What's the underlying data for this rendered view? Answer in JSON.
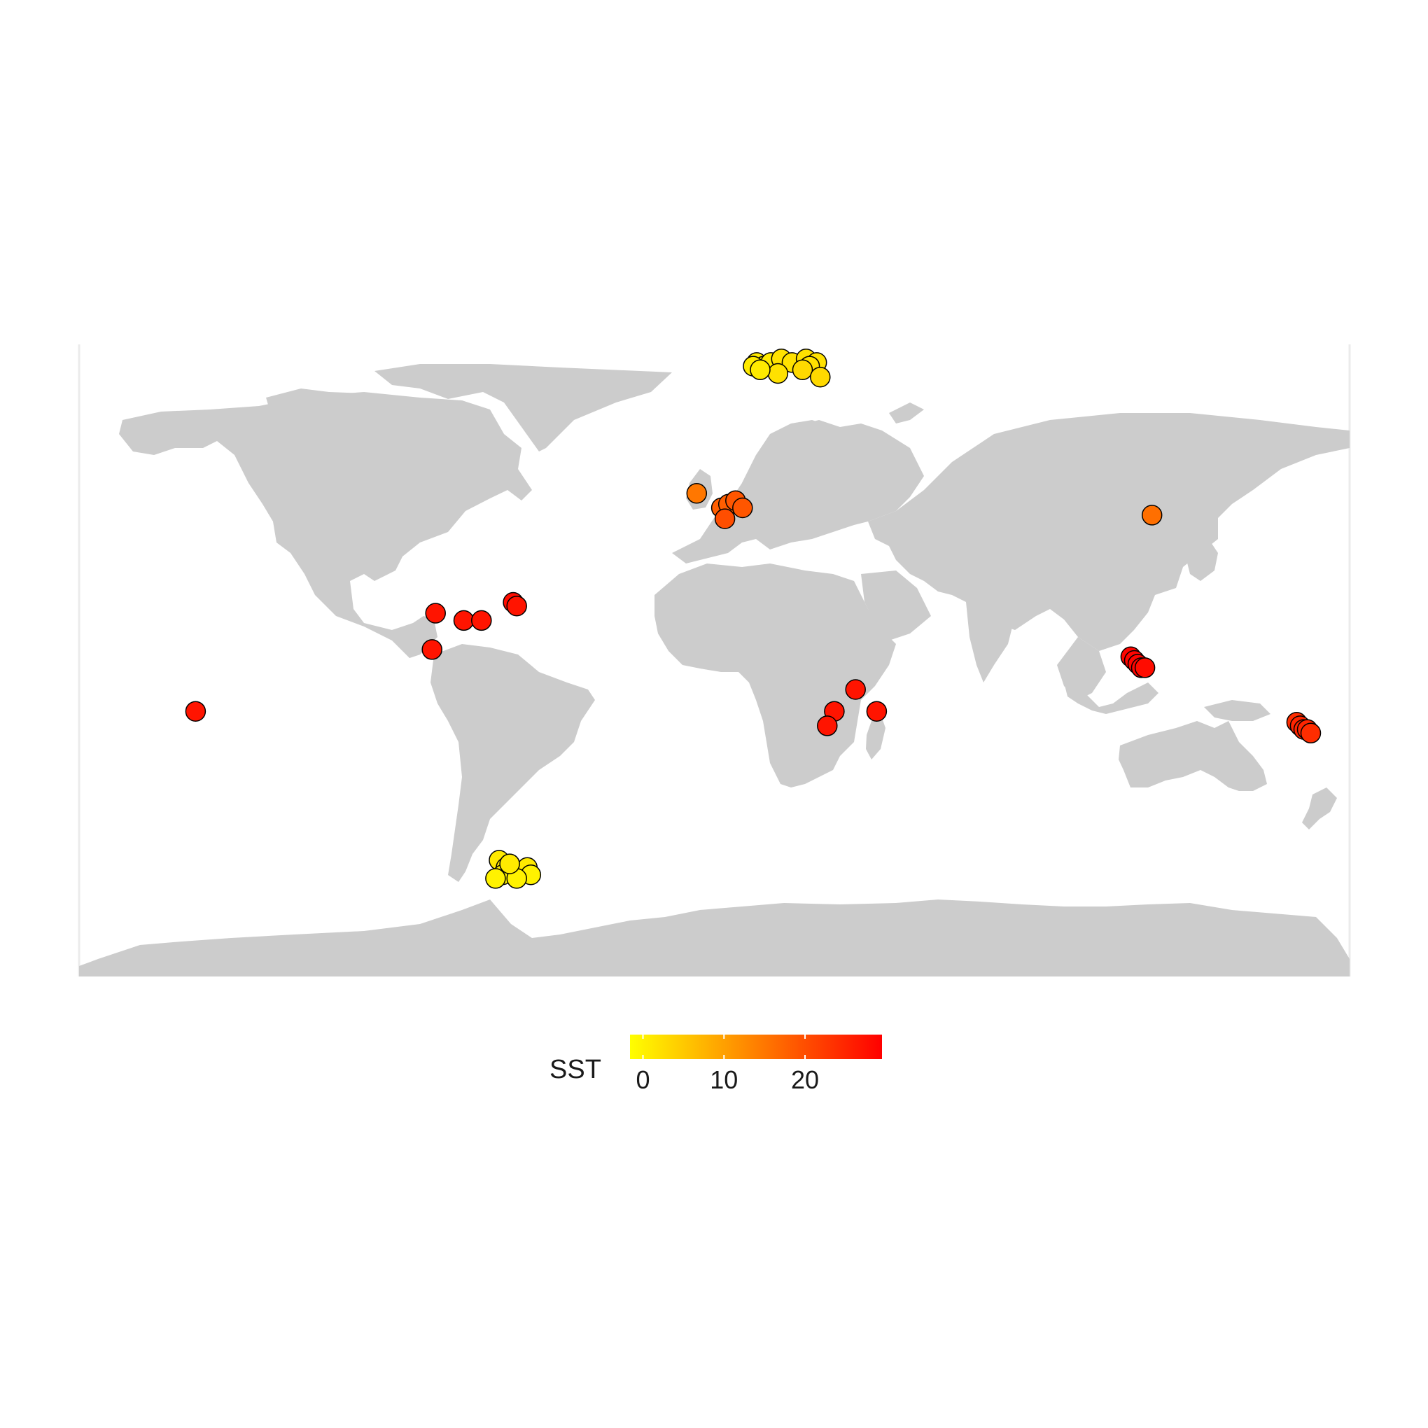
{
  "map": {
    "projection": "equirectangular",
    "lon_range": [
      -180,
      180
    ],
    "lat_range": [
      -90,
      90
    ],
    "land_color": "#cccccc",
    "ocean_color": "#ffffff",
    "point_stroke": "#000000"
  },
  "legend": {
    "title": "SST",
    "ticks": [
      {
        "value": 0,
        "label": "0"
      },
      {
        "value": 10,
        "label": "10"
      },
      {
        "value": 20,
        "label": "20"
      }
    ],
    "range": [
      -1.6,
      29.5
    ],
    "color_low": "#ffff00",
    "color_high": "#ff0000"
  },
  "chart_data": {
    "type": "scatter",
    "x_variable": "longitude",
    "y_variable": "latitude",
    "color_variable": "SST",
    "points": [
      {
        "lon": 12,
        "lat": 79,
        "sst": 1
      },
      {
        "lon": 14,
        "lat": 78,
        "sst": 0
      },
      {
        "lon": 16,
        "lat": 79,
        "sst": 1
      },
      {
        "lon": 11,
        "lat": 78,
        "sst": 1
      },
      {
        "lon": 19,
        "lat": 80,
        "sst": 2
      },
      {
        "lon": 22,
        "lat": 79,
        "sst": 2
      },
      {
        "lon": 26,
        "lat": 80,
        "sst": 2
      },
      {
        "lon": 29,
        "lat": 79,
        "sst": 2
      },
      {
        "lon": 27,
        "lat": 78,
        "sst": 2
      },
      {
        "lon": 18,
        "lat": 76,
        "sst": 2
      },
      {
        "lon": 25,
        "lat": 77,
        "sst": 3
      },
      {
        "lon": 30,
        "lat": 75,
        "sst": 3
      },
      {
        "lon": 13,
        "lat": 77,
        "sst": 1
      },
      {
        "lon": -5,
        "lat": 43,
        "sst": 15
      },
      {
        "lon": 2,
        "lat": 39,
        "sst": 18
      },
      {
        "lon": 4,
        "lat": 40,
        "sst": 18
      },
      {
        "lon": 6,
        "lat": 41,
        "sst": 19
      },
      {
        "lon": 8,
        "lat": 39,
        "sst": 19
      },
      {
        "lon": 3,
        "lat": 36,
        "sst": 20
      },
      {
        "lon": 124,
        "lat": 37,
        "sst": 16
      },
      {
        "lon": -79,
        "lat": 10,
        "sst": 27
      },
      {
        "lon": -71,
        "lat": 8,
        "sst": 27
      },
      {
        "lon": -66,
        "lat": 8,
        "sst": 27
      },
      {
        "lon": -57,
        "lat": 13,
        "sst": 28
      },
      {
        "lon": -56,
        "lat": 12,
        "sst": 27
      },
      {
        "lon": -80,
        "lat": 0,
        "sst": 27
      },
      {
        "lon": -147,
        "lat": -17,
        "sst": 27
      },
      {
        "lon": 40,
        "lat": -11,
        "sst": 27
      },
      {
        "lon": 46,
        "lat": -17,
        "sst": 27
      },
      {
        "lon": 34,
        "lat": -17,
        "sst": 27
      },
      {
        "lon": 32,
        "lat": -21,
        "sst": 27
      },
      {
        "lon": 118,
        "lat": -2,
        "sst": 29
      },
      {
        "lon": 119,
        "lat": -3,
        "sst": 29
      },
      {
        "lon": 120,
        "lat": -4,
        "sst": 29
      },
      {
        "lon": 121,
        "lat": -5,
        "sst": 29
      },
      {
        "lon": 122,
        "lat": -5,
        "sst": 28
      },
      {
        "lon": 165,
        "lat": -20,
        "sst": 24
      },
      {
        "lon": 166,
        "lat": -21,
        "sst": 25
      },
      {
        "lon": 167,
        "lat": -22,
        "sst": 25
      },
      {
        "lon": 168,
        "lat": -22,
        "sst": 25
      },
      {
        "lon": 169,
        "lat": -23,
        "sst": 24
      },
      {
        "lon": -61,
        "lat": -58,
        "sst": 1
      },
      {
        "lon": -59,
        "lat": -60,
        "sst": 1
      },
      {
        "lon": -57,
        "lat": -61,
        "sst": 0
      },
      {
        "lon": -55,
        "lat": -61,
        "sst": 0
      },
      {
        "lon": -53,
        "lat": -60,
        "sst": 1
      },
      {
        "lon": -52,
        "lat": -62,
        "sst": 0
      },
      {
        "lon": -60,
        "lat": -62,
        "sst": 0
      },
      {
        "lon": -62,
        "lat": -63,
        "sst": 0
      },
      {
        "lon": -56,
        "lat": -63,
        "sst": 0
      },
      {
        "lon": -58,
        "lat": -59,
        "sst": 1
      }
    ]
  }
}
